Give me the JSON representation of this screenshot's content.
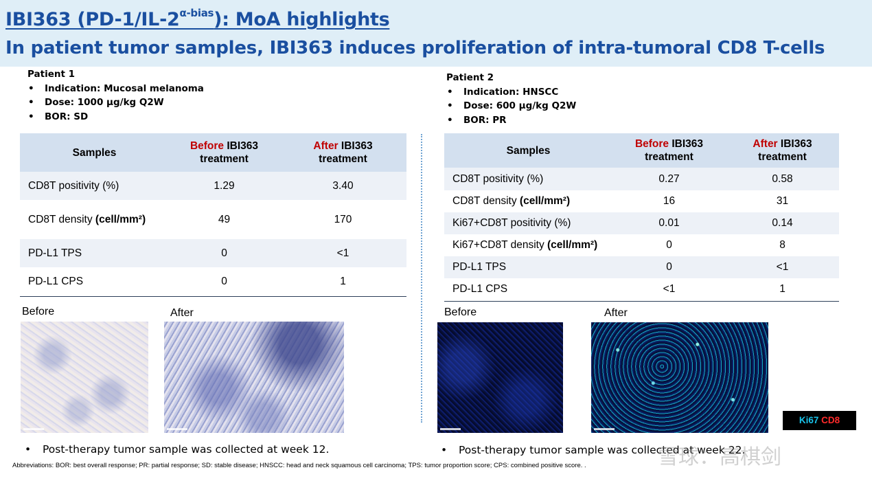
{
  "header": {
    "title_main": "IBI363 (PD-1/IL-2",
    "title_sup": "α-bias",
    "title_end": "): MoA highlights",
    "subtitle": "In patient tumor samples, IBI363 induces proliferation of  intra-tumoral CD8 T-cells"
  },
  "patient1": {
    "title": "Patient 1",
    "bullets": [
      "Indication: Mucosal melanoma",
      "Dose: 1000 μg/kg Q2W",
      "BOR: SD"
    ],
    "table": {
      "col_samples": "Samples",
      "col_before_red": "Before",
      "col_before_rest": " IBI363",
      "col_before_line2": "treatment",
      "col_after_red": "After",
      "col_after_rest": " IBI363",
      "col_after_line2": "treatment",
      "rows": [
        {
          "label": "CD8T positivity (%)",
          "label_bold": "",
          "before": "1.29",
          "after": "3.40"
        },
        {
          "label": "CD8T density ",
          "label_bold": "(cell/mm²)",
          "before": "49",
          "after": "170"
        },
        {
          "label": "PD-L1 TPS",
          "label_bold": "",
          "before": "0",
          "after": "<1"
        },
        {
          "label": "PD-L1 CPS",
          "label_bold": "",
          "before": "0",
          "after": "1"
        }
      ]
    },
    "img_before_label": "Before",
    "img_after_label": "After",
    "note": "Post-therapy tumor sample was collected at week 12."
  },
  "patient2": {
    "title": "Patient 2",
    "bullets": [
      "Indication: HNSCC",
      "Dose: 600 μg/kg Q2W",
      "BOR: PR"
    ],
    "table": {
      "col_samples": "Samples",
      "col_before_red": "Before",
      "col_before_rest": " IBI363",
      "col_before_line2": "treatment",
      "col_after_red": "After",
      "col_after_rest": " IBI363",
      "col_after_line2": "treatment",
      "rows": [
        {
          "label": "CD8T positivity (%)",
          "label_bold": "",
          "before": "0.27",
          "after": "0.58"
        },
        {
          "label": "CD8T density ",
          "label_bold": "(cell/mm²)",
          "before": "16",
          "after": "31"
        },
        {
          "label": "Ki67+CD8T positivity (%)",
          "label_bold": "",
          "before": "0.01",
          "after": "0.14"
        },
        {
          "label": "Ki67+CD8T density ",
          "label_bold": "(cell/mm²)",
          "before": "0",
          "after": "8"
        },
        {
          "label": "PD-L1 TPS",
          "label_bold": "",
          "before": "0",
          "after": "<1"
        },
        {
          "label": "PD-L1 CPS",
          "label_bold": "",
          "before": "<1",
          "after": "1"
        }
      ]
    },
    "img_before_label": "Before",
    "img_after_label": "After",
    "legend_ki67": "Ki67",
    "legend_cd8": "CD8",
    "note": "Post-therapy tumor sample was collected at week 22."
  },
  "bullet_symbol": "•",
  "abbreviations": "Abbreviations: BOR: best overall response; PR: partial response; SD: stable disease; HNSCC: head and neck squamous cell carcinoma; TPS: tumor proportion score; CPS:  combined positive score.  .",
  "watermark": "雪球：高棋剑",
  "colors": {
    "title_blue": "#1a4fa0",
    "header_bg": "#dfeef7",
    "table_header_bg": "#d3e0ef",
    "emphasis_red": "#c00000",
    "ki67_cyan": "#19c3ea",
    "cd8_red": "#ff2a2a"
  }
}
